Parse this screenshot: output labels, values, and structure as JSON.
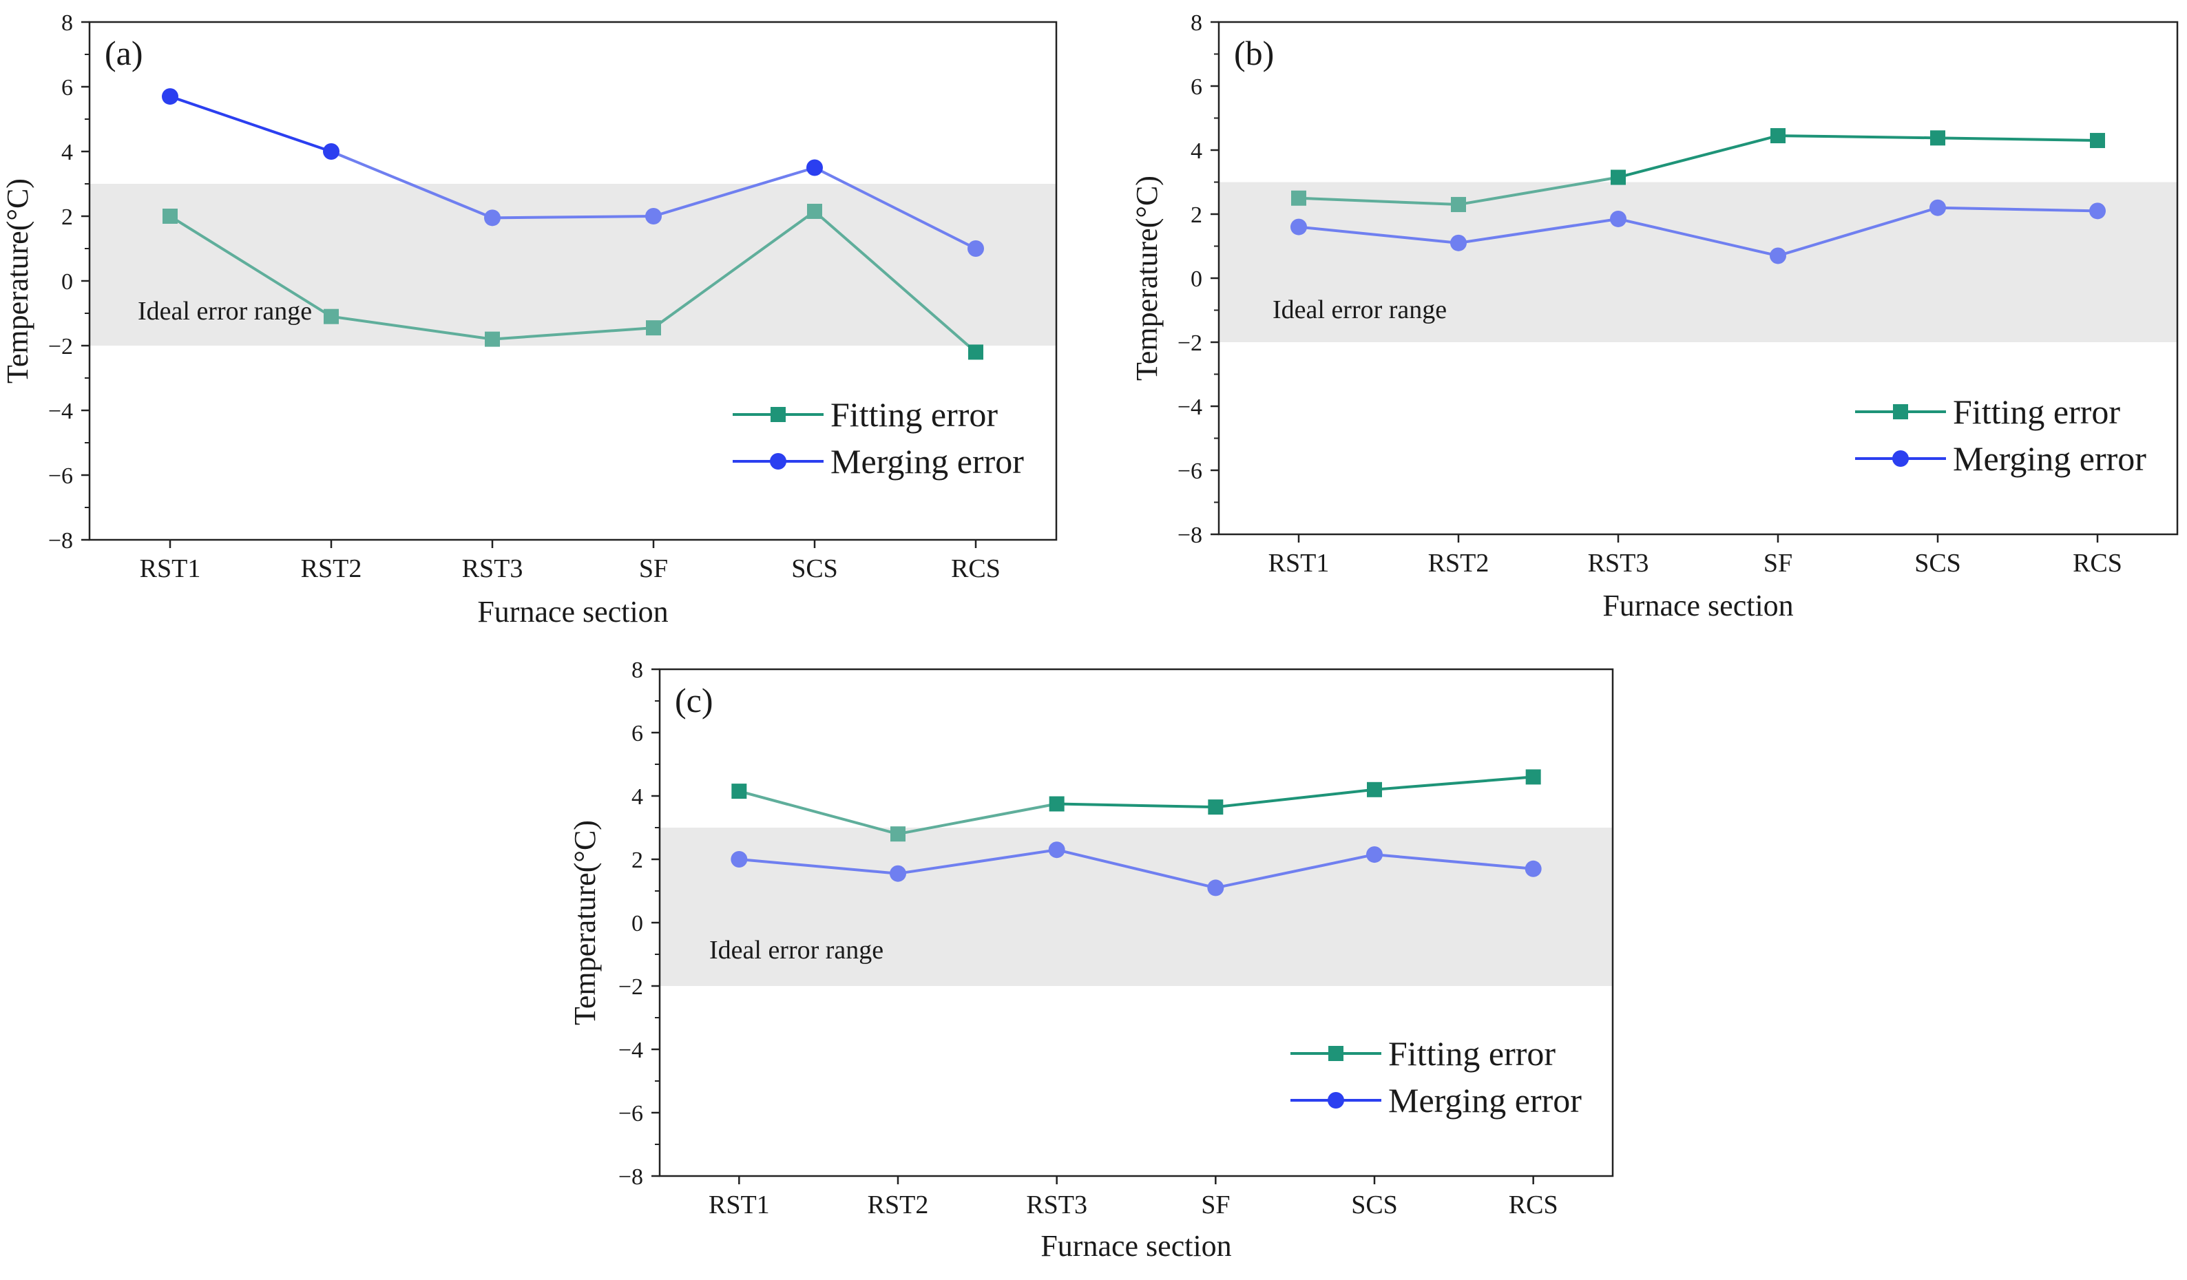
{
  "colors": {
    "fitting": "#1e9478",
    "fitting_light": "#5fae9b",
    "merging": "#2b3ff0",
    "merging_light": "#6f7ff0",
    "band": "#e9e9e9",
    "axis": "#222222"
  },
  "chart_data": [
    {
      "type": "line",
      "panel_label": "(a)",
      "xlabel": "Furnace section",
      "ylabel": "Temperature(°C)",
      "categories": [
        "RST1",
        "RST2",
        "RST3",
        "SF",
        "SCS",
        "RCS"
      ],
      "ylim": [
        -8,
        8
      ],
      "yticks": [
        "8",
        "6",
        "4",
        "2",
        "0",
        "−2",
        "−4",
        "−6",
        "−8"
      ],
      "band": {
        "label": "Ideal error range",
        "range": [
          -2,
          3
        ]
      },
      "legend_position": "lower-right",
      "series": [
        {
          "name": "Fitting error",
          "marker": "square",
          "values": [
            2.0,
            -1.1,
            -1.8,
            -1.45,
            2.15,
            -2.2
          ]
        },
        {
          "name": "Merging error",
          "marker": "circle",
          "values": [
            5.7,
            4.0,
            1.95,
            2.0,
            3.5,
            1.0
          ]
        }
      ]
    },
    {
      "type": "line",
      "panel_label": "(b)",
      "xlabel": "Furnace section",
      "ylabel": "Temperature(°C)",
      "categories": [
        "RST1",
        "RST2",
        "RST3",
        "SF",
        "SCS",
        "RCS"
      ],
      "ylim": [
        -8,
        8
      ],
      "yticks": [
        "8",
        "6",
        "4",
        "2",
        "0",
        "−2",
        "−4",
        "−6",
        "−8"
      ],
      "band": {
        "label": "Ideal error range",
        "range": [
          -2,
          3
        ]
      },
      "legend_position": "lower-right",
      "series": [
        {
          "name": "Fitting error",
          "marker": "square",
          "values": [
            2.5,
            2.3,
            3.15,
            4.45,
            4.38,
            4.3
          ]
        },
        {
          "name": "Merging error",
          "marker": "circle",
          "values": [
            1.6,
            1.1,
            1.85,
            0.7,
            2.2,
            2.1
          ]
        }
      ]
    },
    {
      "type": "line",
      "panel_label": "(c)",
      "xlabel": "Furnace section",
      "ylabel": "Temperature(°C)",
      "categories": [
        "RST1",
        "RST2",
        "RST3",
        "SF",
        "SCS",
        "RCS"
      ],
      "ylim": [
        -8,
        8
      ],
      "yticks": [
        "8",
        "6",
        "4",
        "2",
        "0",
        "−2",
        "−4",
        "−6",
        "−8"
      ],
      "band": {
        "label": "Ideal error range",
        "range": [
          -2,
          3
        ]
      },
      "legend_position": "lower-right",
      "series": [
        {
          "name": "Fitting error",
          "marker": "square",
          "values": [
            4.15,
            2.8,
            3.75,
            3.65,
            4.2,
            4.6
          ]
        },
        {
          "name": "Merging error",
          "marker": "circle",
          "values": [
            2.0,
            1.55,
            2.3,
            1.1,
            2.15,
            1.7
          ]
        }
      ]
    }
  ]
}
